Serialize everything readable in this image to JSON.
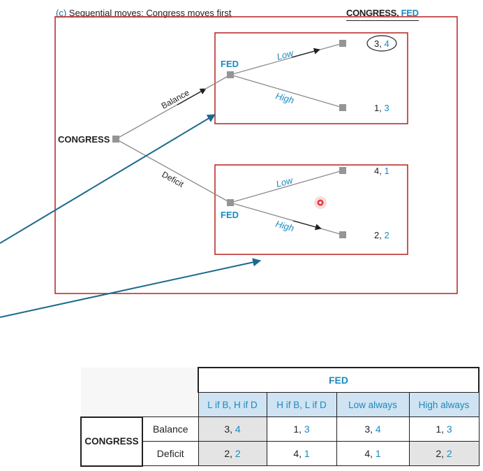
{
  "caption": {
    "part": "(c)",
    "text": "Sequential moves: Congress moves first"
  },
  "legend": {
    "congress": "CONGRESS,",
    "fed": "FED"
  },
  "tree": {
    "root": "CONGRESS",
    "fed_top": "FED",
    "fed_bottom": "FED",
    "branch_balance": "Balance",
    "branch_deficit": "Deficit",
    "top_low": "Low",
    "top_high": "High",
    "bottom_low": "Low",
    "bottom_high": "High",
    "payoffs": [
      {
        "c": "3",
        "f": "4"
      },
      {
        "c": "1",
        "f": "3"
      },
      {
        "c": "4",
        "f": "1"
      },
      {
        "c": "2",
        "f": "2"
      }
    ]
  },
  "colors": {
    "blue": "#1a8ac0",
    "red_box": "#b5221e",
    "arrow": "#1b6a8c",
    "node": "#939598"
  },
  "table": {
    "player_col": "FED",
    "player_row": "CONGRESS",
    "strategies": [
      "L if B, H if D",
      "H if B, L if D",
      "Low always",
      "High always"
    ],
    "rows": [
      {
        "label": "Balance",
        "cells": [
          {
            "c": "3",
            "f": "4"
          },
          {
            "c": "1",
            "f": "3"
          },
          {
            "c": "3",
            "f": "4"
          },
          {
            "c": "1",
            "f": "3"
          }
        ]
      },
      {
        "label": "Deficit",
        "cells": [
          {
            "c": "2",
            "f": "2"
          },
          {
            "c": "4",
            "f": "1"
          },
          {
            "c": "4",
            "f": "1"
          },
          {
            "c": "2",
            "f": "2"
          }
        ]
      }
    ]
  }
}
